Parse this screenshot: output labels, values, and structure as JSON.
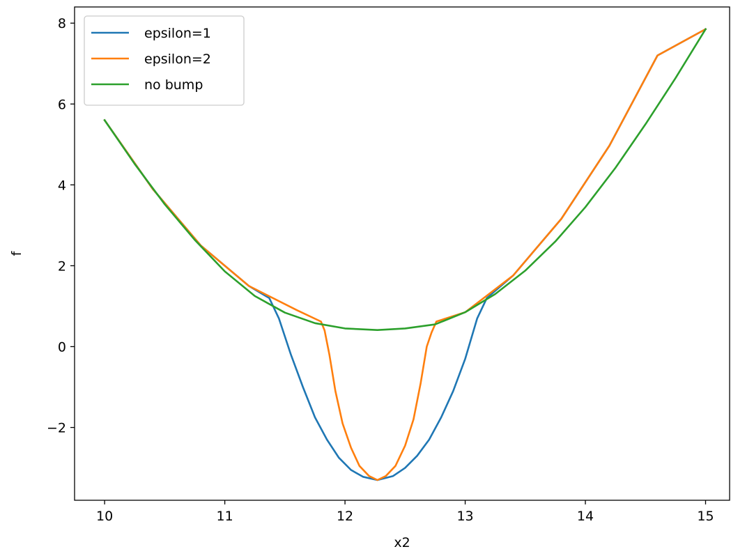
{
  "chart_data": {
    "type": "line",
    "title": "",
    "xlabel": "x2",
    "ylabel": "f",
    "xlim": [
      9.75,
      15.2
    ],
    "ylim": [
      -3.8,
      8.4
    ],
    "xticks": [
      10,
      11,
      12,
      13,
      14,
      15
    ],
    "yticks": [
      -2,
      0,
      2,
      4,
      6,
      8
    ],
    "grid": false,
    "legend_position": "top-left",
    "series": [
      {
        "name": "epsilon=1",
        "color": "#1f77b4",
        "x": [
          10.0,
          10.4,
          10.8,
          11.2,
          11.37,
          11.45,
          11.55,
          11.65,
          11.75,
          11.85,
          11.95,
          12.05,
          12.15,
          12.27,
          12.4,
          12.5,
          12.6,
          12.7,
          12.8,
          12.9,
          13.0,
          13.1,
          13.18,
          13.4,
          13.8,
          14.2,
          14.6,
          15.0
        ],
        "y": [
          5.6,
          3.9,
          2.5,
          1.5,
          1.2,
          0.7,
          -0.2,
          -1.0,
          -1.75,
          -2.3,
          -2.75,
          -3.05,
          -3.22,
          -3.3,
          -3.2,
          -3.0,
          -2.7,
          -2.3,
          -1.75,
          -1.1,
          -0.3,
          0.7,
          1.2,
          1.76,
          3.16,
          4.97,
          7.2,
          7.85
        ]
      },
      {
        "name": "epsilon=2",
        "color": "#ff7f0e",
        "x": [
          10.0,
          10.4,
          10.8,
          11.2,
          11.6,
          11.8,
          11.83,
          11.87,
          11.92,
          11.98,
          12.05,
          12.12,
          12.2,
          12.27,
          12.34,
          12.42,
          12.5,
          12.57,
          12.63,
          12.68,
          12.72,
          12.76,
          13.0,
          13.4,
          13.8,
          14.2,
          14.6,
          15.0
        ],
        "y": [
          5.6,
          3.9,
          2.5,
          1.5,
          0.9,
          0.62,
          0.4,
          -0.2,
          -1.1,
          -1.9,
          -2.5,
          -2.95,
          -3.2,
          -3.3,
          -3.2,
          -2.95,
          -2.45,
          -1.8,
          -0.9,
          0.0,
          0.35,
          0.62,
          0.85,
          1.76,
          3.16,
          4.97,
          7.2,
          7.85
        ]
      },
      {
        "name": "no bump",
        "color": "#2ca02c",
        "x": [
          10.0,
          10.25,
          10.5,
          10.75,
          11.0,
          11.25,
          11.5,
          11.75,
          12.0,
          12.27,
          12.5,
          12.75,
          13.0,
          13.25,
          13.5,
          13.75,
          14.0,
          14.25,
          14.5,
          14.75,
          15.0
        ],
        "y": [
          5.6,
          4.52,
          3.52,
          2.64,
          1.86,
          1.25,
          0.84,
          0.58,
          0.45,
          0.41,
          0.45,
          0.55,
          0.85,
          1.3,
          1.88,
          2.6,
          3.45,
          4.42,
          5.5,
          6.64,
          7.85
        ]
      }
    ]
  }
}
